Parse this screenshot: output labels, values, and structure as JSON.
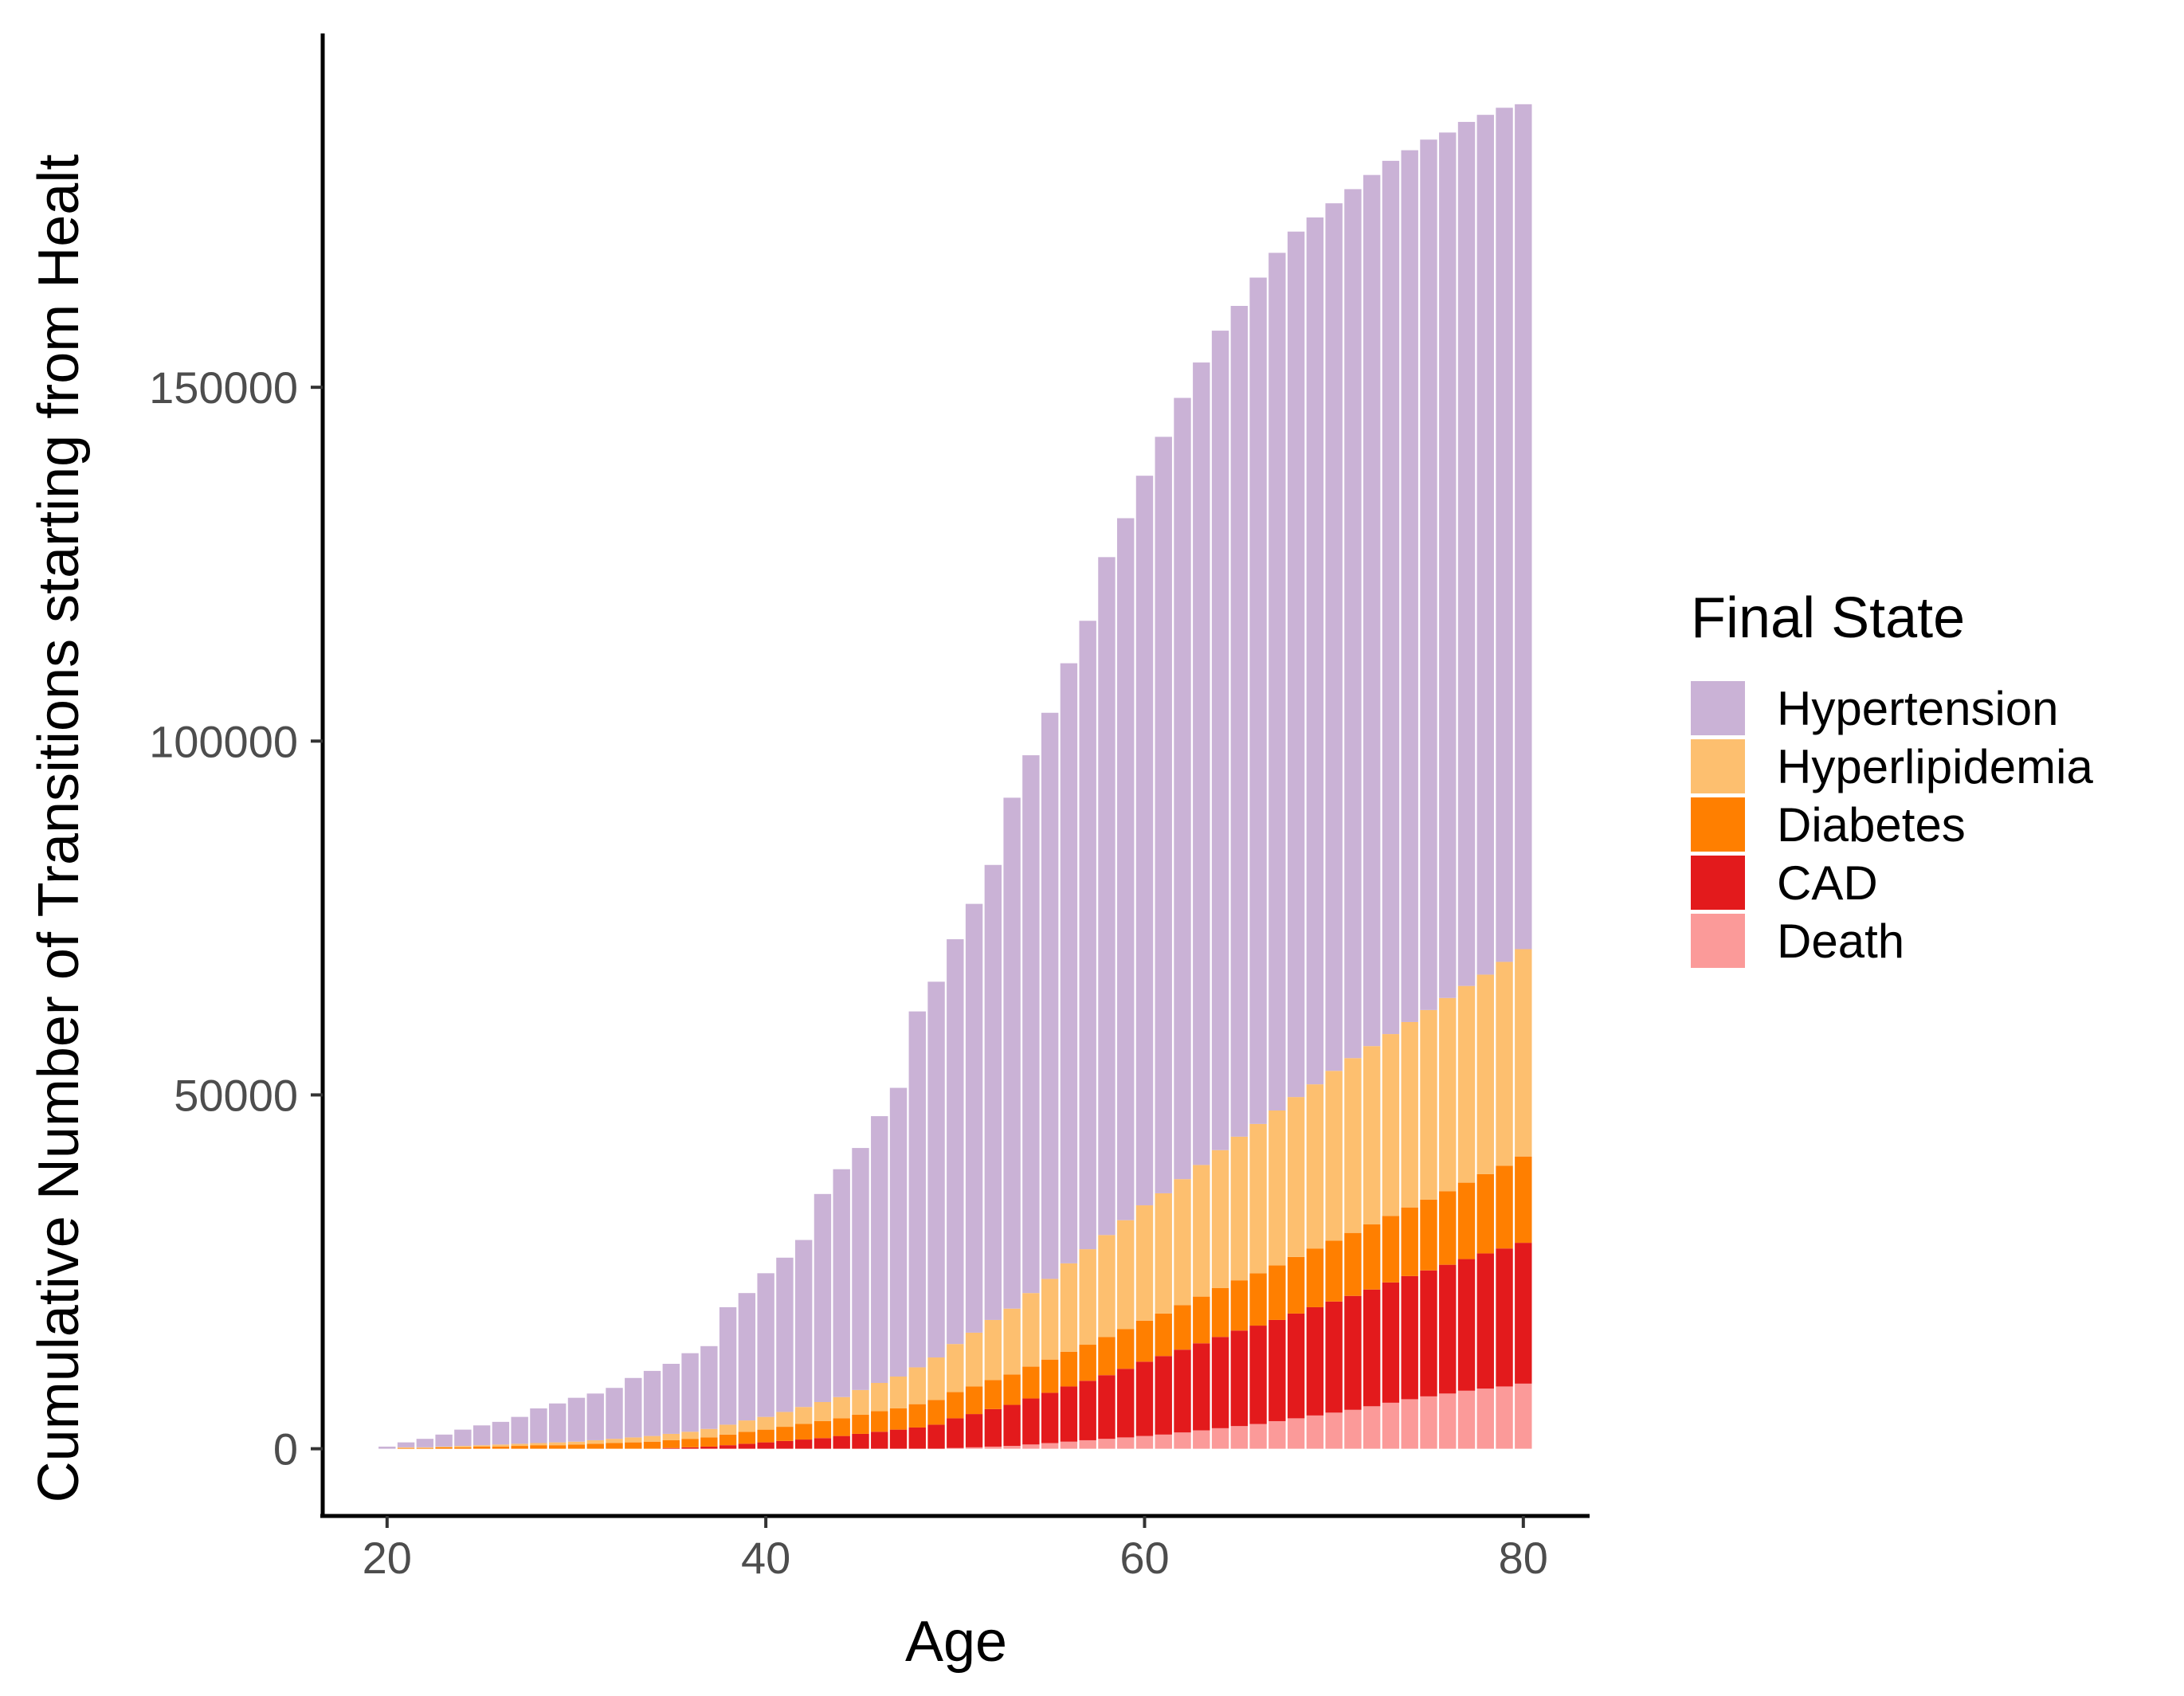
{
  "chart_data": {
    "type": "bar",
    "stacked": true,
    "title": "",
    "xlabel": "Age",
    "ylabel": "Cumulative Number of Transitions starting from Healt",
    "xlim": [
      16.6,
      83.5
    ],
    "ylim": [
      -9500,
      200000
    ],
    "xticks": [
      20,
      40,
      60,
      80
    ],
    "yticks": [
      0,
      50000,
      100000,
      150000
    ],
    "x": [
      20,
      21,
      22,
      23,
      24,
      25,
      26,
      27,
      28,
      29,
      30,
      31,
      32,
      33,
      34,
      35,
      36,
      37,
      38,
      39,
      40,
      41,
      42,
      43,
      44,
      45,
      46,
      47,
      48,
      49,
      50,
      51,
      52,
      53,
      54,
      55,
      56,
      57,
      58,
      59,
      60,
      61,
      62,
      63,
      64,
      65,
      66,
      67,
      68,
      69,
      70,
      71,
      72,
      73,
      74,
      75,
      76,
      77,
      78,
      79,
      80
    ],
    "totals": [
      300,
      900,
      1400,
      2000,
      2700,
      3300,
      3800,
      4500,
      5700,
      6400,
      7200,
      7800,
      8600,
      10000,
      11000,
      12000,
      13500,
      14500,
      20000,
      22000,
      24800,
      27000,
      29500,
      36000,
      39500,
      42500,
      47000,
      51000,
      61800,
      66000,
      72000,
      77000,
      82500,
      92000,
      98000,
      104000,
      111000,
      117000,
      126000,
      131500,
      137500,
      143000,
      148500,
      153500,
      158000,
      161500,
      165500,
      169000,
      172000,
      174000,
      176000,
      178000,
      180000,
      182000,
      183500,
      185000,
      186000,
      187500,
      188500,
      189500,
      190000
    ],
    "series": [
      {
        "name": "Death",
        "color": "#fb9a99",
        "values": [
          0,
          0,
          0,
          0,
          0,
          0,
          0,
          0,
          0,
          0,
          0,
          0,
          0,
          0,
          0,
          0,
          0,
          0,
          0,
          0,
          0,
          0,
          0,
          0,
          0,
          0,
          0,
          0,
          0,
          0,
          100,
          200,
          300,
          400,
          600,
          800,
          1000,
          1200,
          1400,
          1600,
          1800,
          2000,
          2300,
          2600,
          2900,
          3200,
          3500,
          3900,
          4300,
          4700,
          5100,
          5500,
          6000,
          6500,
          7000,
          7400,
          7800,
          8200,
          8500,
          8800,
          9200
        ]
      },
      {
        "name": "CAD",
        "color": "#e31a1c",
        "values": [
          0,
          0,
          0,
          0,
          0,
          0,
          0,
          0,
          0,
          0,
          0,
          0,
          0,
          0,
          0,
          100,
          200,
          300,
          500,
          700,
          900,
          1100,
          1300,
          1500,
          1800,
          2100,
          2400,
          2700,
          3000,
          3400,
          4200,
          4700,
          5300,
          5800,
          6500,
          7100,
          7800,
          8400,
          9000,
          9700,
          10500,
          11100,
          11700,
          12300,
          12900,
          13500,
          13900,
          14300,
          14800,
          15300,
          15700,
          16100,
          16500,
          17000,
          17400,
          17800,
          18200,
          18600,
          19100,
          19500,
          19900
        ]
      },
      {
        "name": "Diabetes",
        "color": "#ff7f00",
        "values": [
          0,
          100,
          100,
          200,
          200,
          300,
          300,
          400,
          500,
          500,
          600,
          700,
          800,
          900,
          1000,
          1100,
          1200,
          1300,
          1500,
          1700,
          1800,
          2000,
          2200,
          2400,
          2500,
          2700,
          2900,
          3000,
          3300,
          3500,
          3700,
          3900,
          4100,
          4300,
          4500,
          4700,
          4900,
          5100,
          5400,
          5600,
          5800,
          6000,
          6300,
          6600,
          6900,
          7100,
          7400,
          7700,
          8000,
          8300,
          8600,
          8900,
          9200,
          9400,
          9700,
          10000,
          10400,
          10800,
          11200,
          11700,
          12200
        ]
      },
      {
        "name": "Hyperlipidemia",
        "color": "#fdbf6f",
        "values": [
          0,
          100,
          100,
          100,
          200,
          200,
          300,
          300,
          300,
          400,
          400,
          500,
          600,
          700,
          800,
          900,
          1000,
          1200,
          1400,
          1600,
          1800,
          2100,
          2400,
          2700,
          3000,
          3500,
          4000,
          4500,
          5200,
          6000,
          6800,
          7600,
          8500,
          9300,
          10400,
          11400,
          12500,
          13500,
          14400,
          15400,
          16300,
          17000,
          17800,
          18600,
          19500,
          20300,
          21100,
          21900,
          22600,
          23200,
          24000,
          24700,
          25200,
          25700,
          26200,
          26800,
          27300,
          27800,
          28200,
          28800,
          29300
        ]
      },
      {
        "name": "Hypertension",
        "color": "#cab2d6",
        "values": [
          300,
          700,
          1200,
          1700,
          2300,
          2800,
          3200,
          3800,
          4900,
          5500,
          6200,
          6600,
          7200,
          8400,
          9200,
          9900,
          11100,
          11700,
          16600,
          18000,
          20300,
          21800,
          23600,
          29400,
          32200,
          34200,
          37700,
          40800,
          50300,
          53100,
          57200,
          60600,
          64300,
          72200,
          76000,
          80000,
          84800,
          88800,
          95800,
          99200,
          103100,
          106900,
          110400,
          113400,
          115800,
          117400,
          119600,
          121200,
          122300,
          122500,
          122600,
          122800,
          123100,
          123400,
          123200,
          123000,
          122300,
          122100,
          121500,
          120700,
          119400
        ]
      }
    ],
    "legend": {
      "title": "Final State",
      "position": "right",
      "entries": [
        "Hypertension",
        "Hyperlipidemia",
        "Diabetes",
        "CAD",
        "Death"
      ]
    },
    "grid": false
  }
}
